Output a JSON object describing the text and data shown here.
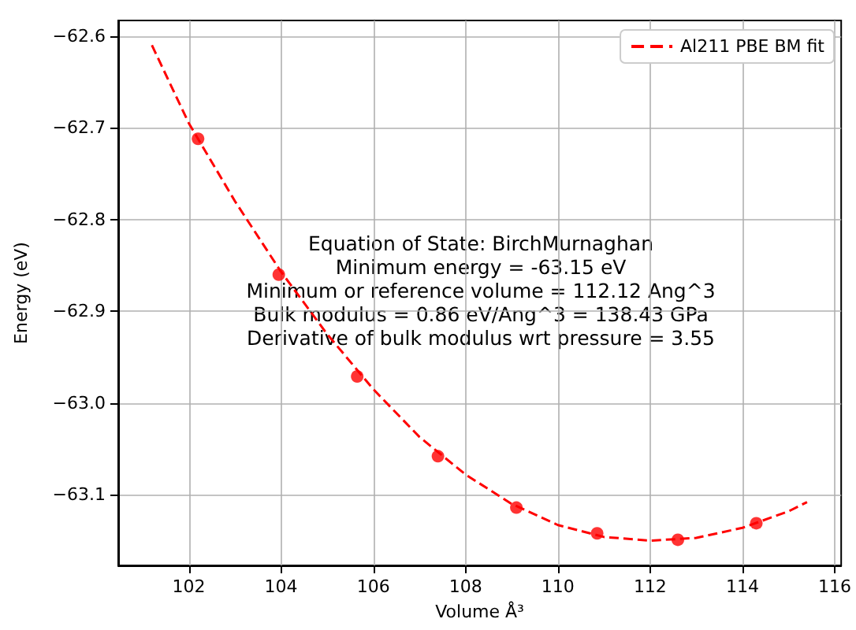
{
  "chart_data": {
    "type": "line",
    "xlabel": "Volume Å³",
    "ylabel": "Energy (eV)",
    "annotations": [
      "Equation of State: BirchMurnaghan",
      "Minimum energy = -63.15 eV",
      "Minimum or reference volume = 112.12 Ang^3",
      "Bulk modulus = 0.86 eV/Ang^3 = 138.43 GPa",
      "Derivative of bulk modulus wrt pressure = 3.55"
    ],
    "series": [
      {
        "type": "scatter",
        "color": "#ff0000",
        "marker": "circle",
        "x": [
          102.2,
          103.95,
          105.65,
          107.4,
          109.1,
          110.85,
          112.6,
          114.3
        ],
        "values": [
          -62.712,
          -62.86,
          -62.971,
          -63.058,
          -63.114,
          -63.142,
          -63.149,
          -63.131
        ]
      },
      {
        "name": "Al211 PBE BM fit",
        "color": "#ff0000",
        "marker": "none",
        "line_style": "dashed",
        "x": [
          101.2,
          102,
          103,
          104,
          105,
          106,
          107,
          108,
          109,
          110,
          111,
          112,
          113,
          114,
          115,
          115.4
        ],
        "values": [
          -62.61,
          -62.695,
          -62.78,
          -62.857,
          -62.925,
          -62.985,
          -63.037,
          -63.078,
          -63.11,
          -63.133,
          -63.146,
          -63.15,
          -63.147,
          -63.136,
          -63.118,
          -63.108
        ]
      }
    ],
    "xlim": [
      100.47,
      116.14
    ],
    "xticks": [
      102,
      104,
      106,
      108,
      110,
      112,
      114,
      116
    ],
    "ylim": [
      -63.177,
      -62.583
    ],
    "yticks": [
      -63.1,
      {
        "value": -63.0,
        "label": "−63.0"
      },
      -62.9,
      -62.8,
      -62.7,
      -62.6
    ],
    "grid": true,
    "legend": "top right"
  }
}
